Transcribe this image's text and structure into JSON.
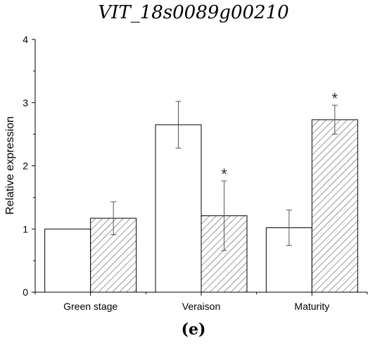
{
  "chart_data": {
    "type": "bar",
    "title": "VIT_18s0089g00210",
    "panel_label": "(e)",
    "xlabel": "",
    "ylabel": "Relative expression",
    "ylim": [
      0,
      4
    ],
    "yticks": [
      "0",
      "1",
      "2",
      "3",
      "4"
    ],
    "categories": [
      "Green stage",
      "Veraison",
      "Maturity"
    ],
    "series": [
      {
        "fill": "open",
        "values": [
          1.0,
          2.65,
          1.02
        ],
        "errors": [
          0.0,
          0.37,
          0.28
        ]
      },
      {
        "fill": "hatched",
        "values": [
          1.17,
          1.21,
          2.73
        ],
        "errors": [
          0.26,
          0.55,
          0.23
        ]
      }
    ],
    "annotations": [
      {
        "category": "Veraison",
        "series_index": 1,
        "text": "*"
      },
      {
        "category": "Maturity",
        "series_index": 1,
        "text": "*"
      }
    ],
    "grid": false
  }
}
